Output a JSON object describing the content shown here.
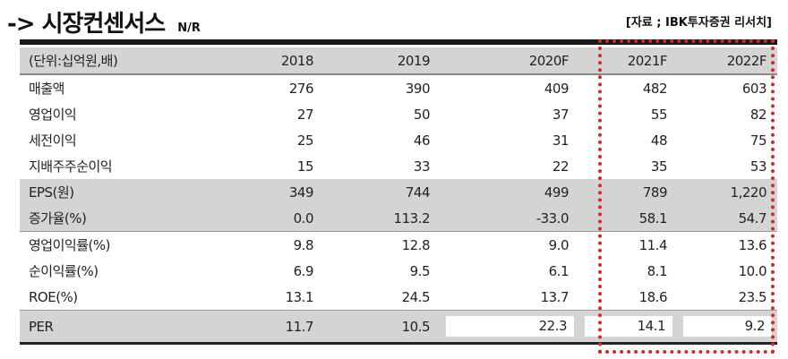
{
  "header": {
    "arrow": "->",
    "title": "시장컨센서스",
    "tag": "N/R",
    "source": "[자료 ; IBK투자증권 리서치]"
  },
  "table": {
    "unit": "(단위:십억원,배)",
    "years": [
      "2018",
      "2019",
      "2020F",
      "2021F",
      "2022F"
    ],
    "rows": [
      {
        "label": "매출액",
        "values": [
          "276",
          "390",
          "409",
          "482",
          "603"
        ]
      },
      {
        "label": "영업이익",
        "values": [
          "27",
          "50",
          "37",
          "55",
          "82"
        ]
      },
      {
        "label": "세전이익",
        "values": [
          "25",
          "46",
          "31",
          "48",
          "75"
        ]
      },
      {
        "label": "지배주주순이익",
        "values": [
          "15",
          "33",
          "22",
          "35",
          "53"
        ]
      },
      {
        "label": "EPS(원)",
        "values": [
          "349",
          "744",
          "499",
          "789",
          "1,220"
        ]
      },
      {
        "label": "증가율(%)",
        "values": [
          "0.0",
          "113.2",
          "-33.0",
          "58.1",
          "54.7"
        ]
      },
      {
        "label": "영업이익률(%)",
        "values": [
          "9.8",
          "12.8",
          "9.0",
          "11.4",
          "13.6"
        ]
      },
      {
        "label": "순이익률(%)",
        "values": [
          "6.9",
          "9.5",
          "6.1",
          "8.1",
          "10.0"
        ]
      },
      {
        "label": "ROE(%)",
        "values": [
          "13.1",
          "24.5",
          "13.7",
          "18.6",
          "23.5"
        ]
      },
      {
        "label": "PER",
        "values": [
          "11.7",
          "10.5",
          "22.3",
          "14.1",
          "9.2"
        ]
      }
    ]
  },
  "colors": {
    "highlight_border": "#d62828",
    "shade": "#d4d4d4"
  }
}
